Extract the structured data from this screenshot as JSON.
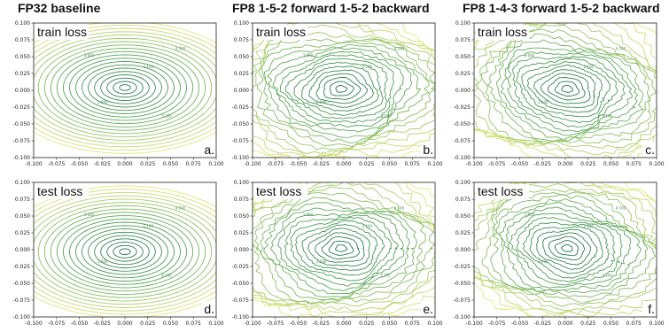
{
  "column_titles": [
    "FP32 baseline",
    "FP8 1-5-2 forward 1-5-2 backward",
    "FP8 1-4-3 forward 1-5-2 backward"
  ],
  "chart_data": [
    {
      "type": "contour",
      "panel_label": "a.",
      "inset_label": "train loss",
      "column": 0,
      "row": 0,
      "style": "smooth",
      "xlim": [
        -0.1,
        0.1
      ],
      "ylim": [
        -0.1,
        0.1
      ],
      "x_ticks": [
        "-0.100",
        "-0.075",
        "-0.050",
        "-0.025",
        "0.000",
        "0.025",
        "0.050",
        "0.075",
        "0.100"
      ],
      "y_ticks": [
        "0.100",
        "0.075",
        "0.050",
        "0.025",
        "0.000",
        "-0.025",
        "-0.050",
        "-0.075",
        "-0.100"
      ],
      "contour_labels": [
        "2.100",
        "2.600",
        "3.100",
        "3.600",
        "4.100"
      ]
    },
    {
      "type": "contour",
      "panel_label": "b.",
      "inset_label": "train loss",
      "column": 1,
      "row": 0,
      "style": "noisy",
      "xlim": [
        -0.1,
        0.1
      ],
      "ylim": [
        -0.1,
        0.1
      ],
      "x_ticks": [
        "-0.100",
        "-0.075",
        "-0.050",
        "-0.025",
        "0.000",
        "0.025",
        "0.050",
        "0.075",
        "0.100"
      ],
      "y_ticks": [
        "0.100",
        "0.075",
        "0.050",
        "0.025",
        "0.000",
        "-0.025",
        "-0.050",
        "-0.075",
        "-0.100"
      ],
      "contour_labels": [
        "2.100",
        "2.600",
        "3.100",
        "3.600",
        "4.100"
      ]
    },
    {
      "type": "contour",
      "panel_label": "c.",
      "inset_label": "train loss",
      "column": 2,
      "row": 0,
      "style": "noisy-tilt",
      "xlim": [
        -0.1,
        0.1
      ],
      "ylim": [
        -0.1,
        0.1
      ],
      "x_ticks": [
        "-0.100",
        "-0.075",
        "-0.050",
        "-0.025",
        "0.000",
        "0.025",
        "0.050",
        "0.075",
        "0.100"
      ],
      "y_ticks": [
        "0.100",
        "0.075",
        "0.050",
        "0.025",
        "0.000",
        "-0.025",
        "-0.050",
        "-0.075",
        "-0.100"
      ],
      "contour_labels": [
        "2.100",
        "2.600",
        "3.100",
        "3.600",
        "4.100"
      ]
    },
    {
      "type": "contour",
      "panel_label": "d.",
      "inset_label": "test loss",
      "column": 0,
      "row": 1,
      "style": "smooth",
      "xlim": [
        -0.1,
        0.1
      ],
      "ylim": [
        -0.1,
        0.1
      ],
      "x_ticks": [
        "-0.100",
        "-0.075",
        "-0.050",
        "-0.025",
        "0.000",
        "0.025",
        "0.050",
        "0.075",
        "0.100"
      ],
      "y_ticks": [
        "0.100",
        "0.075",
        "0.050",
        "0.025",
        "0.000",
        "-0.025",
        "-0.050",
        "-0.075",
        "-0.100"
      ],
      "contour_labels": [
        "2.100",
        "2.600",
        "3.100",
        "3.600",
        "4.100"
      ]
    },
    {
      "type": "contour",
      "panel_label": "e.",
      "inset_label": "test loss",
      "column": 1,
      "row": 1,
      "style": "noisy",
      "xlim": [
        -0.1,
        0.1
      ],
      "ylim": [
        -0.1,
        0.1
      ],
      "x_ticks": [
        "-0.100",
        "-0.075",
        "-0.050",
        "-0.025",
        "0.000",
        "0.025",
        "0.050",
        "0.075",
        "0.100"
      ],
      "y_ticks": [
        "0.100",
        "0.075",
        "0.050",
        "0.025",
        "0.000",
        "-0.025",
        "-0.050",
        "-0.075",
        "-0.100"
      ],
      "contour_labels": [
        "2.100",
        "2.600",
        "3.100",
        "3.600",
        "4.100"
      ]
    },
    {
      "type": "contour",
      "panel_label": "f.",
      "inset_label": "test loss",
      "column": 2,
      "row": 1,
      "style": "noisy-tilt",
      "xlim": [
        -0.1,
        0.1
      ],
      "ylim": [
        -0.1,
        0.1
      ],
      "x_ticks": [
        "-0.100",
        "-0.075",
        "-0.050",
        "-0.025",
        "0.000",
        "0.025",
        "0.050",
        "0.075",
        "0.100"
      ],
      "y_ticks": [
        "0.100",
        "0.075",
        "0.050",
        "0.025",
        "0.000",
        "-0.025",
        "-0.050",
        "-0.075",
        "-0.100"
      ],
      "contour_labels": [
        "2.100",
        "2.600",
        "3.100",
        "3.600",
        "4.100"
      ]
    }
  ]
}
